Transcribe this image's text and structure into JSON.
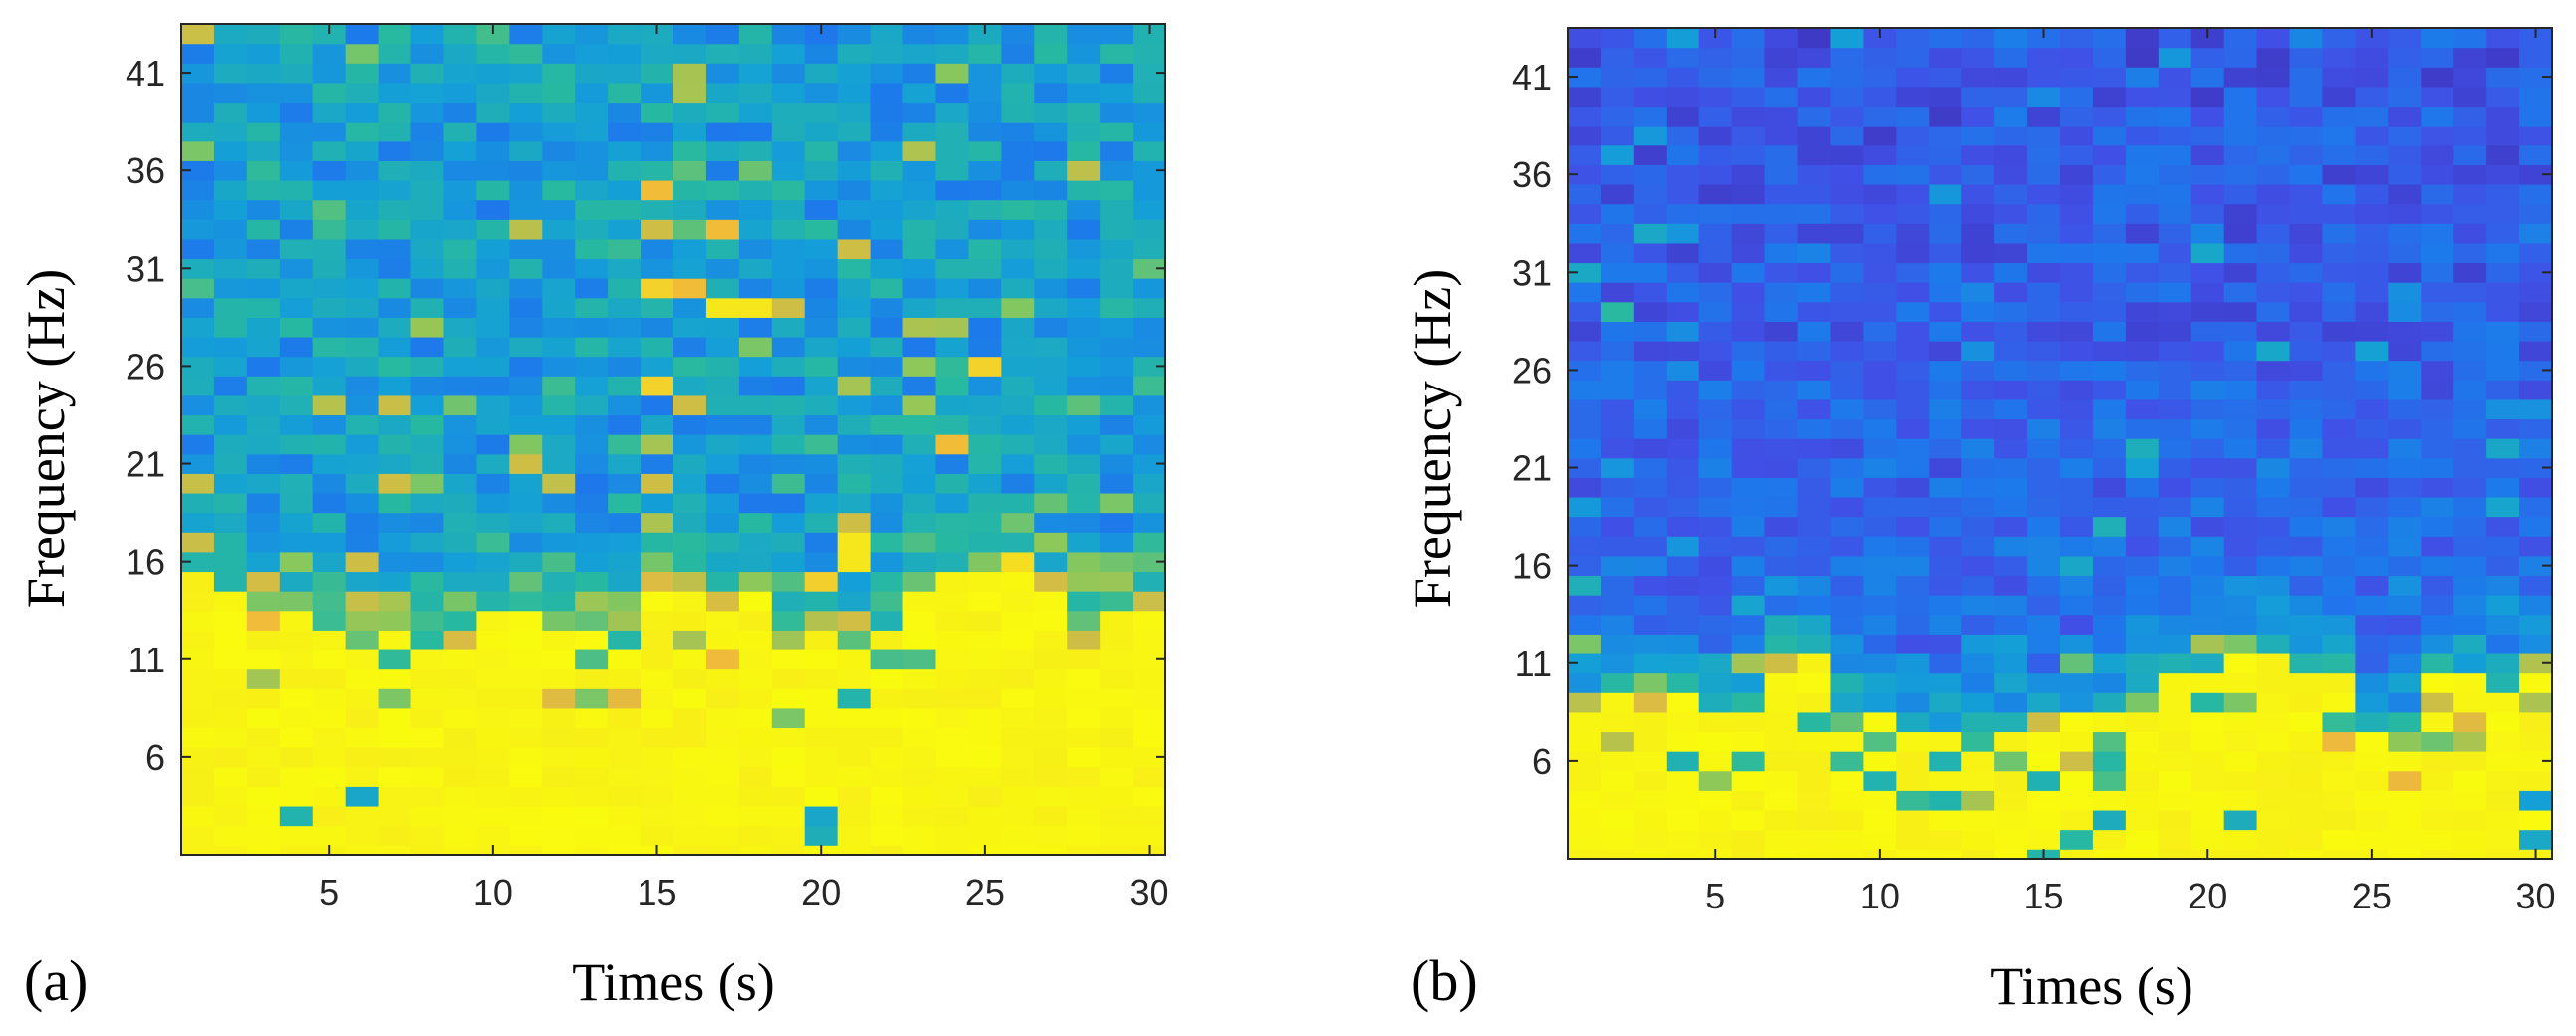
{
  "chart_data": [
    {
      "type": "heatmap",
      "panel_label": "(a)",
      "xlabel": "Times (s)",
      "ylabel": "Frequency  (Hz)",
      "x_ticks": [
        5,
        10,
        15,
        20,
        25,
        30
      ],
      "y_ticks": [
        6,
        11,
        16,
        21,
        26,
        31,
        36,
        41
      ],
      "xlim": [
        0.5,
        30.5
      ],
      "ylim": [
        1,
        43.5
      ],
      "time_bins": 30,
      "freq_bins": 42,
      "colormap": "parula",
      "yellow_cutoff_hz": [
        14,
        14,
        13,
        13,
        12,
        12,
        12,
        11,
        11,
        13,
        13,
        12,
        12,
        12,
        14,
        14,
        13,
        13,
        12,
        12,
        12,
        12,
        14,
        15,
        15,
        15,
        14,
        13,
        13,
        13
      ],
      "hot_cells": [
        {
          "t": 15,
          "f": 35,
          "v": 0.85
        },
        {
          "t": 15,
          "f": 33,
          "v": 0.8
        },
        {
          "t": 15,
          "f": 30,
          "v": 0.9
        },
        {
          "t": 16,
          "f": 30,
          "v": 0.85
        },
        {
          "t": 15,
          "f": 25,
          "v": 0.9
        },
        {
          "t": 16,
          "f": 24,
          "v": 0.8
        },
        {
          "t": 15,
          "f": 22,
          "v": 0.75
        },
        {
          "t": 15,
          "f": 20,
          "v": 0.8
        },
        {
          "t": 17,
          "f": 33,
          "v": 0.85
        },
        {
          "t": 17,
          "f": 29,
          "v": 0.95
        },
        {
          "t": 18,
          "f": 29,
          "v": 0.95
        },
        {
          "t": 19,
          "f": 29,
          "v": 0.8
        },
        {
          "t": 18,
          "f": 27,
          "v": 0.7
        },
        {
          "t": 21,
          "f": 32,
          "v": 0.8
        },
        {
          "t": 21,
          "f": 25,
          "v": 0.75
        },
        {
          "t": 21,
          "f": 17,
          "v": 0.95
        },
        {
          "t": 21,
          "f": 16,
          "v": 0.95
        },
        {
          "t": 24,
          "f": 22,
          "v": 0.85
        },
        {
          "t": 25,
          "f": 26,
          "v": 0.9
        },
        {
          "t": 24,
          "f": 28,
          "v": 0.75
        },
        {
          "t": 1,
          "f": 37,
          "v": 0.7
        },
        {
          "t": 5,
          "f": 34,
          "v": 0.65
        },
        {
          "t": 7,
          "f": 20,
          "v": 0.8
        },
        {
          "t": 8,
          "f": 20,
          "v": 0.7
        },
        {
          "t": 6,
          "f": 16,
          "v": 0.8
        },
        {
          "t": 11,
          "f": 21,
          "v": 0.8
        },
        {
          "t": 16,
          "f": 12,
          "v": 0.75
        },
        {
          "t": 13,
          "f": 9,
          "v": 0.7
        },
        {
          "t": 19,
          "f": 8,
          "v": 0.7
        },
        {
          "t": 29,
          "f": 19,
          "v": 0.7
        }
      ]
    },
    {
      "type": "heatmap",
      "panel_label": "(b)",
      "xlabel": "Times (s)",
      "ylabel": "Frequency  (Hz)",
      "x_ticks": [
        5,
        10,
        15,
        20,
        25,
        30
      ],
      "y_ticks": [
        6,
        11,
        16,
        21,
        26,
        31,
        36,
        41
      ],
      "xlim": [
        0.5,
        30.5
      ],
      "ylim": [
        1,
        43.5
      ],
      "time_bins": 30,
      "freq_bins": 42,
      "colormap": "parula",
      "yellow_cutoff_hz": [
        9,
        9,
        9,
        9,
        8,
        8,
        11,
        11,
        8,
        8,
        7,
        7,
        7,
        7,
        7,
        8,
        8,
        9,
        10,
        10,
        11,
        11,
        10,
        10,
        7,
        7,
        10,
        10,
        9,
        10
      ],
      "hot_cells": [
        {
          "t": 1,
          "f": 12,
          "v": 0.7
        },
        {
          "t": 3,
          "f": 10,
          "v": 0.7
        },
        {
          "t": 6,
          "f": 11,
          "v": 0.75
        },
        {
          "t": 7,
          "f": 11,
          "v": 0.8
        },
        {
          "t": 18,
          "f": 9,
          "v": 0.7
        },
        {
          "t": 20,
          "f": 12,
          "v": 0.75
        },
        {
          "t": 21,
          "f": 12,
          "v": 0.7
        },
        {
          "t": 2,
          "f": 29,
          "v": 0.6
        },
        {
          "t": 10,
          "f": 7,
          "v": 0.65
        },
        {
          "t": 17,
          "f": 7,
          "v": 0.65
        }
      ]
    }
  ]
}
